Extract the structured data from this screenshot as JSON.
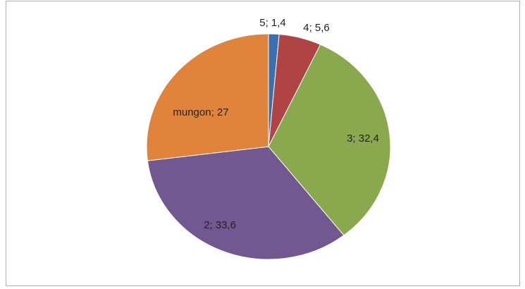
{
  "chart_data": {
    "type": "pie",
    "values": [
      1.4,
      5.6,
      32.4,
      33.6,
      27
    ],
    "value_labels": [
      "5; 1,4",
      "4; 5,6",
      "3; 32,4",
      "2; 33,6",
      "mungon; 27"
    ],
    "colors": [
      "#3a6fb0",
      "#b04444",
      "#8aa84e",
      "#725891",
      "#e0843c"
    ]
  }
}
